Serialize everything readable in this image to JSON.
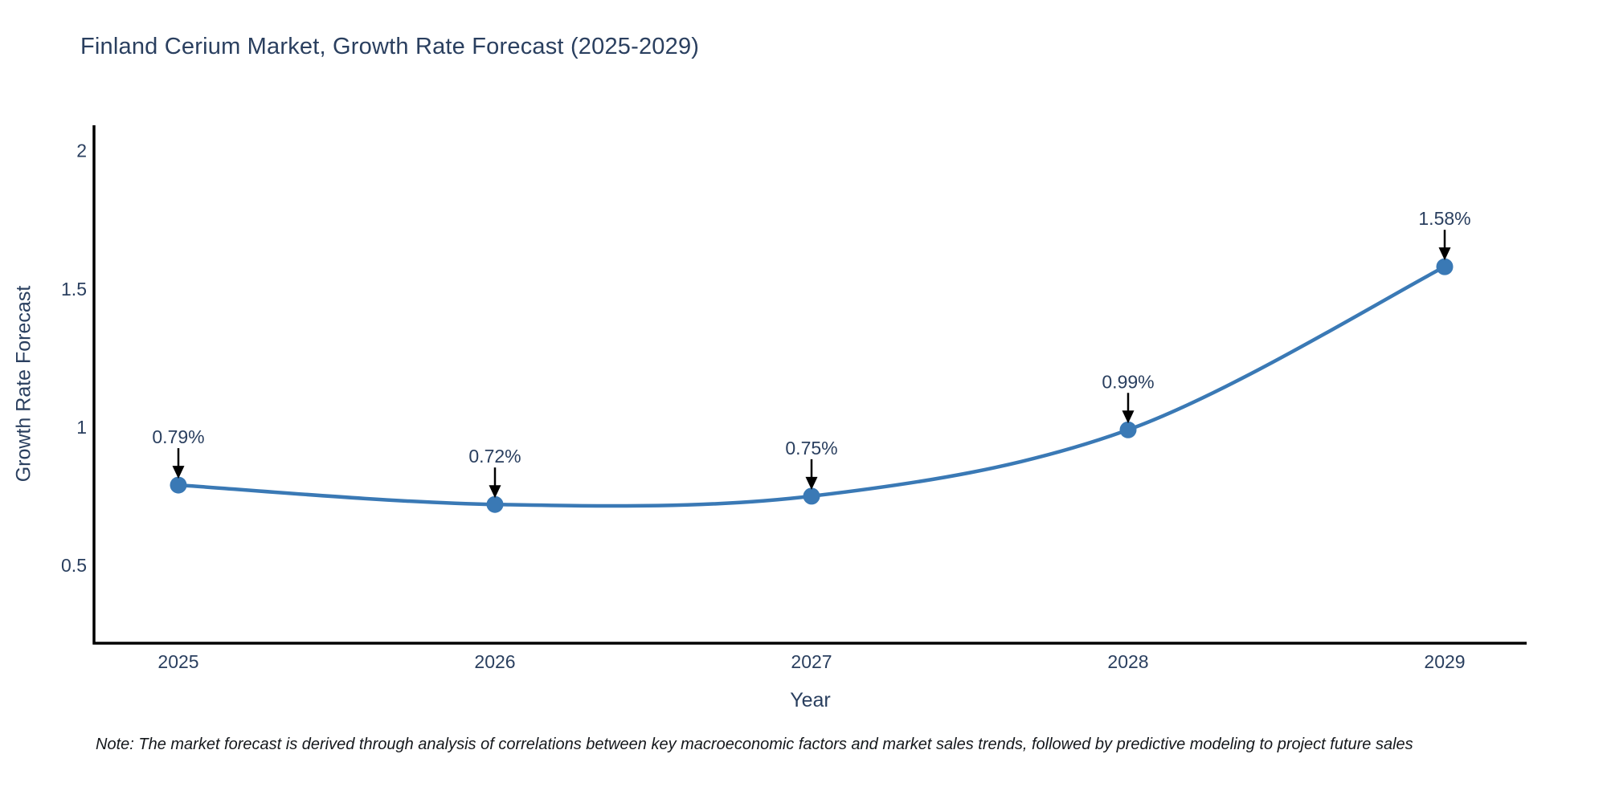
{
  "header": {
    "title": "Finland Cerium Market, Growth Rate Forecast (2025-2029)"
  },
  "footnote": "Note: The market forecast is derived through analysis of correlations between key macroeconomic factors and market sales trends, followed by predictive modeling to project future sales",
  "chart_data": {
    "type": "line",
    "line_shape": "spline",
    "title": "Finland Cerium Market, Growth Rate Forecast (2025-2029)",
    "xlabel": "Year",
    "ylabel": "Growth Rate Forecast",
    "categories": [
      "2025",
      "2026",
      "2027",
      "2028",
      "2029"
    ],
    "series": [
      {
        "name": "Growth Rate Forecast",
        "values": [
          0.79,
          0.72,
          0.75,
          0.99,
          1.58
        ]
      }
    ],
    "point_labels": [
      "0.79%",
      "0.72%",
      "0.75%",
      "0.99%",
      "1.58%"
    ],
    "y_ticks": [
      "0.5",
      "1",
      "1.5",
      "2"
    ],
    "y_tick_values": [
      0.5,
      1,
      1.5,
      2
    ],
    "ylim": [
      0.218,
      2.086
    ],
    "grid": false,
    "legend_position": "none",
    "annotations_have_arrows": true,
    "colors": {
      "line": "#3a79b5",
      "marker": "#3a79b5",
      "axis": "#000000",
      "tick_text": "#2a3f5f",
      "annotation_text": "#2a3f5f",
      "arrow": "#000000",
      "title_text": "#2a3f5f",
      "background": "#ffffff"
    }
  }
}
